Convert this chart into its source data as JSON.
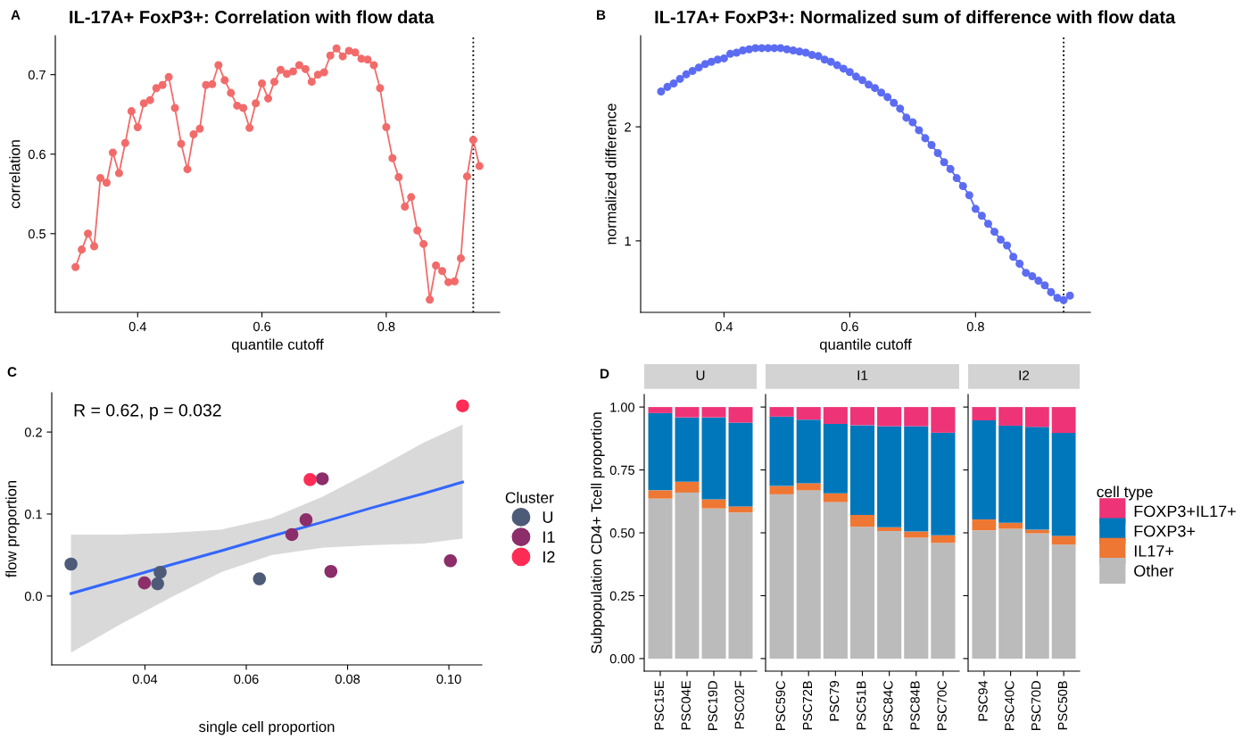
{
  "chart_data": [
    {
      "type": "line",
      "title": "IL-17A+ FoxP3+: Correlation with flow data",
      "xlabel": "quantile cutoff",
      "ylabel": "correlation",
      "annotations": [
        "A"
      ],
      "marker": "circle",
      "x": [
        0.3,
        0.31,
        0.32,
        0.33,
        0.34,
        0.35,
        0.36,
        0.37,
        0.38,
        0.39,
        0.4,
        0.41,
        0.42,
        0.43,
        0.44,
        0.45,
        0.46,
        0.47,
        0.48,
        0.49,
        0.5,
        0.51,
        0.52,
        0.53,
        0.54,
        0.55,
        0.56,
        0.57,
        0.58,
        0.59,
        0.6,
        0.61,
        0.62,
        0.63,
        0.64,
        0.65,
        0.66,
        0.67,
        0.68,
        0.69,
        0.7,
        0.71,
        0.72,
        0.73,
        0.74,
        0.75,
        0.76,
        0.77,
        0.78,
        0.79,
        0.8,
        0.81,
        0.82,
        0.83,
        0.84,
        0.85,
        0.86,
        0.87,
        0.88,
        0.89,
        0.9,
        0.91,
        0.92,
        0.93,
        0.94,
        0.95
      ],
      "series": [
        {
          "color": "#f26b6b",
          "values": [
            0.458,
            0.48,
            0.5,
            0.484,
            0.57,
            0.564,
            0.602,
            0.576,
            0.614,
            0.654,
            0.634,
            0.664,
            0.668,
            0.683,
            0.687,
            0.697,
            0.658,
            0.613,
            0.581,
            0.625,
            0.632,
            0.687,
            0.688,
            0.712,
            0.693,
            0.677,
            0.661,
            0.658,
            0.633,
            0.664,
            0.689,
            0.67,
            0.691,
            0.706,
            0.701,
            0.704,
            0.712,
            0.707,
            0.691,
            0.7,
            0.703,
            0.724,
            0.733,
            0.723,
            0.73,
            0.728,
            0.72,
            0.719,
            0.712,
            0.683,
            0.634,
            0.595,
            0.571,
            0.534,
            0.546,
            0.504,
            0.487,
            0.417,
            0.46,
            0.453,
            0.439,
            0.44,
            0.469,
            0.572,
            0.618,
            0.585
          ]
        }
      ],
      "xlim": [
        0.2675,
        0.9825
      ],
      "xticks": [
        {
          "value": 0.4,
          "label": "0.4"
        },
        {
          "value": 0.6,
          "label": "0.6"
        },
        {
          "value": 0.8,
          "label": "0.8"
        }
      ],
      "ylim": [
        0.401,
        0.749
      ],
      "yticks": [
        {
          "value": 0.5,
          "label": "0.5"
        },
        {
          "value": 0.6,
          "label": "0.6"
        },
        {
          "value": 0.7,
          "label": "0.7"
        }
      ],
      "ref_lines": [
        {
          "axis": "x",
          "value": 0.94,
          "color": "#000000",
          "line_style": "dotted"
        }
      ]
    },
    {
      "type": "line",
      "title": "IL-17A+ FoxP3+: Normalized sum of difference with flow data",
      "xlabel": "quantile cutoff",
      "ylabel": "normalized difference",
      "annotations": [
        "B"
      ],
      "marker": "circle",
      "x": [
        0.3,
        0.31,
        0.32,
        0.33,
        0.34,
        0.35,
        0.36,
        0.37,
        0.38,
        0.39,
        0.4,
        0.41,
        0.42,
        0.43,
        0.44,
        0.45,
        0.46,
        0.47,
        0.48,
        0.49,
        0.5,
        0.51,
        0.52,
        0.53,
        0.54,
        0.55,
        0.56,
        0.57,
        0.58,
        0.59,
        0.6,
        0.61,
        0.62,
        0.63,
        0.64,
        0.65,
        0.66,
        0.67,
        0.68,
        0.69,
        0.7,
        0.71,
        0.72,
        0.73,
        0.74,
        0.75,
        0.76,
        0.77,
        0.78,
        0.79,
        0.8,
        0.81,
        0.82,
        0.83,
        0.84,
        0.85,
        0.86,
        0.87,
        0.88,
        0.89,
        0.9,
        0.91,
        0.92,
        0.93,
        0.94,
        0.95
      ],
      "series": [
        {
          "color": "#5c6cf2",
          "values": [
            2.31,
            2.35,
            2.38,
            2.42,
            2.46,
            2.49,
            2.52,
            2.55,
            2.57,
            2.59,
            2.6,
            2.64,
            2.65,
            2.67,
            2.68,
            2.69,
            2.69,
            2.69,
            2.69,
            2.69,
            2.68,
            2.67,
            2.66,
            2.65,
            2.63,
            2.62,
            2.59,
            2.57,
            2.54,
            2.51,
            2.48,
            2.44,
            2.41,
            2.37,
            2.34,
            2.3,
            2.26,
            2.21,
            2.16,
            2.08,
            2.04,
            1.97,
            1.9,
            1.84,
            1.77,
            1.69,
            1.63,
            1.55,
            1.48,
            1.4,
            1.28,
            1.22,
            1.15,
            1.08,
            1.01,
            0.96,
            0.86,
            0.8,
            0.72,
            0.69,
            0.65,
            0.61,
            0.55,
            0.5,
            0.48,
            0.52
          ]
        }
      ],
      "xlim": [
        0.2675,
        0.9825
      ],
      "xticks": [
        {
          "value": 0.4,
          "label": "0.4"
        },
        {
          "value": 0.6,
          "label": "0.6"
        },
        {
          "value": 0.8,
          "label": "0.8"
        }
      ],
      "ylim": [
        0.373,
        2.799
      ],
      "yticks": [
        {
          "value": 1,
          "label": "1"
        },
        {
          "value": 2,
          "label": "2"
        }
      ],
      "ref_lines": [
        {
          "axis": "x",
          "value": 0.94,
          "color": "#000000",
          "line_style": "dotted"
        }
      ]
    },
    {
      "type": "scatter",
      "xlabel": "single cell proportion",
      "ylabel": "flow proportion",
      "annotations": [
        "C",
        "R = 0.62, p = 0.032"
      ],
      "legend": "right",
      "legend_title": "Cluster",
      "marker": "circle",
      "series": [
        {
          "name": "U",
          "color": "#4e5b78",
          "x": [
            0.0254,
            0.043,
            0.0425,
            0.0626
          ],
          "values": [
            0.039,
            0.029,
            0.015,
            0.021
          ]
        },
        {
          "name": "I1",
          "color": "#8b2e6a",
          "x": [
            0.0399,
            0.069,
            0.0718,
            0.075,
            0.0767,
            0.1003
          ],
          "values": [
            0.016,
            0.075,
            0.093,
            0.143,
            0.03,
            0.043
          ]
        },
        {
          "name": "I2",
          "color": "#ff2d55",
          "x": [
            0.0726,
            0.1027
          ],
          "values": [
            0.142,
            0.232
          ]
        },
        {
          "type": "line",
          "marker": "none",
          "color": "#3366ff",
          "x": [
            0.0254,
            0.035,
            0.045,
            0.055,
            0.065,
            0.075,
            0.085,
            0.095,
            0.1027
          ],
          "values": [
            0.003,
            0.02,
            0.038,
            0.055,
            0.073,
            0.09,
            0.108,
            0.125,
            0.139
          ],
          "lower": [
            -0.069,
            -0.035,
            -0.002,
            0.029,
            0.05,
            0.059,
            0.062,
            0.064,
            0.07
          ],
          "upper": [
            0.075,
            0.075,
            0.077,
            0.081,
            0.095,
            0.121,
            0.153,
            0.187,
            0.209
          ]
        }
      ],
      "xlim": [
        0.0216,
        0.1065
      ],
      "xticks": [
        {
          "value": 0.04,
          "label": "0.04"
        },
        {
          "value": 0.06,
          "label": "0.06"
        },
        {
          "value": 0.08,
          "label": "0.08"
        },
        {
          "value": 0.1,
          "label": "0.10"
        }
      ],
      "ylim": [
        -0.084,
        0.248
      ],
      "yticks": [
        {
          "value": 0.0,
          "label": "0.0"
        },
        {
          "value": 0.1,
          "label": "0.1"
        },
        {
          "value": 0.2,
          "label": "0.2"
        }
      ]
    },
    {
      "type": "bar",
      "stacked": true,
      "title": "U",
      "ylabel": "Subpopulation CD4+ Tcell proportion",
      "annotations": [
        "D"
      ],
      "categories": [
        "PSC15E",
        "PSC04E",
        "PSC19D",
        "PSC02F"
      ],
      "series": [
        {
          "color": "#bbbbbb",
          "values": [
            0.636,
            0.66,
            0.597,
            0.581
          ]
        },
        {
          "color": "#ee7733",
          "values": [
            0.033,
            0.043,
            0.036,
            0.024
          ]
        },
        {
          "color": "#0077bb",
          "values": [
            0.307,
            0.256,
            0.326,
            0.333
          ]
        },
        {
          "color": "#ee3377",
          "values": [
            0.024,
            0.041,
            0.041,
            0.062
          ]
        }
      ],
      "ylim": [
        -0.05,
        1.05
      ],
      "yticks": [
        {
          "value": 0,
          "label": "0.00"
        },
        {
          "value": 0.25,
          "label": "0.25"
        },
        {
          "value": 0.5,
          "label": "0.50"
        },
        {
          "value": 0.75,
          "label": "0.75"
        },
        {
          "value": 1,
          "label": "1.00"
        }
      ]
    },
    {
      "type": "bar",
      "stacked": true,
      "title": "I1",
      "tick_labels": "x",
      "categories": [
        "PSC59C",
        "PSC72B",
        "PSC79",
        "PSC51B",
        "PSC84C",
        "PSC84B",
        "PSC70C"
      ],
      "series": [
        {
          "color": "#bbbbbb",
          "values": [
            0.653,
            0.669,
            0.622,
            0.524,
            0.507,
            0.481,
            0.46
          ]
        },
        {
          "color": "#ee7733",
          "values": [
            0.033,
            0.028,
            0.035,
            0.047,
            0.015,
            0.024,
            0.03
          ]
        },
        {
          "color": "#0077bb",
          "values": [
            0.276,
            0.253,
            0.276,
            0.357,
            0.402,
            0.419,
            0.408
          ]
        },
        {
          "color": "#ee3377",
          "values": [
            0.038,
            0.05,
            0.067,
            0.072,
            0.076,
            0.076,
            0.102
          ]
        }
      ],
      "ylim": [
        -0.05,
        1.05
      ],
      "yticks": [
        {
          "value": 0,
          "label": null
        },
        {
          "value": 0.25,
          "label": null
        },
        {
          "value": 0.5,
          "label": null
        },
        {
          "value": 0.75,
          "label": null
        },
        {
          "value": 1,
          "label": null
        }
      ]
    },
    {
      "type": "bar",
      "stacked": true,
      "title": "I2",
      "tick_labels": "x",
      "legend": "right",
      "legend_title": "cell type",
      "categories": [
        "PSC94",
        "PSC40C",
        "PSC70D",
        "PSC50B"
      ],
      "series": [
        {
          "name": "Other",
          "color": "#bbbbbb",
          "values": [
            0.51,
            0.516,
            0.498,
            0.453
          ]
        },
        {
          "name": "IL17+",
          "color": "#ee7733",
          "values": [
            0.043,
            0.024,
            0.014,
            0.035
          ]
        },
        {
          "name": "FOXP3+",
          "color": "#0077bb",
          "values": [
            0.394,
            0.386,
            0.409,
            0.409
          ]
        },
        {
          "name": "FOXP3+IL17+",
          "color": "#ee3377",
          "values": [
            0.053,
            0.074,
            0.079,
            0.103
          ]
        }
      ],
      "ylim": [
        -0.05,
        1.05
      ],
      "yticks": [
        {
          "value": 0,
          "label": null
        },
        {
          "value": 0.25,
          "label": null
        },
        {
          "value": 0.5,
          "label": null
        },
        {
          "value": 0.75,
          "label": null
        },
        {
          "value": 1,
          "label": null
        }
      ]
    }
  ]
}
